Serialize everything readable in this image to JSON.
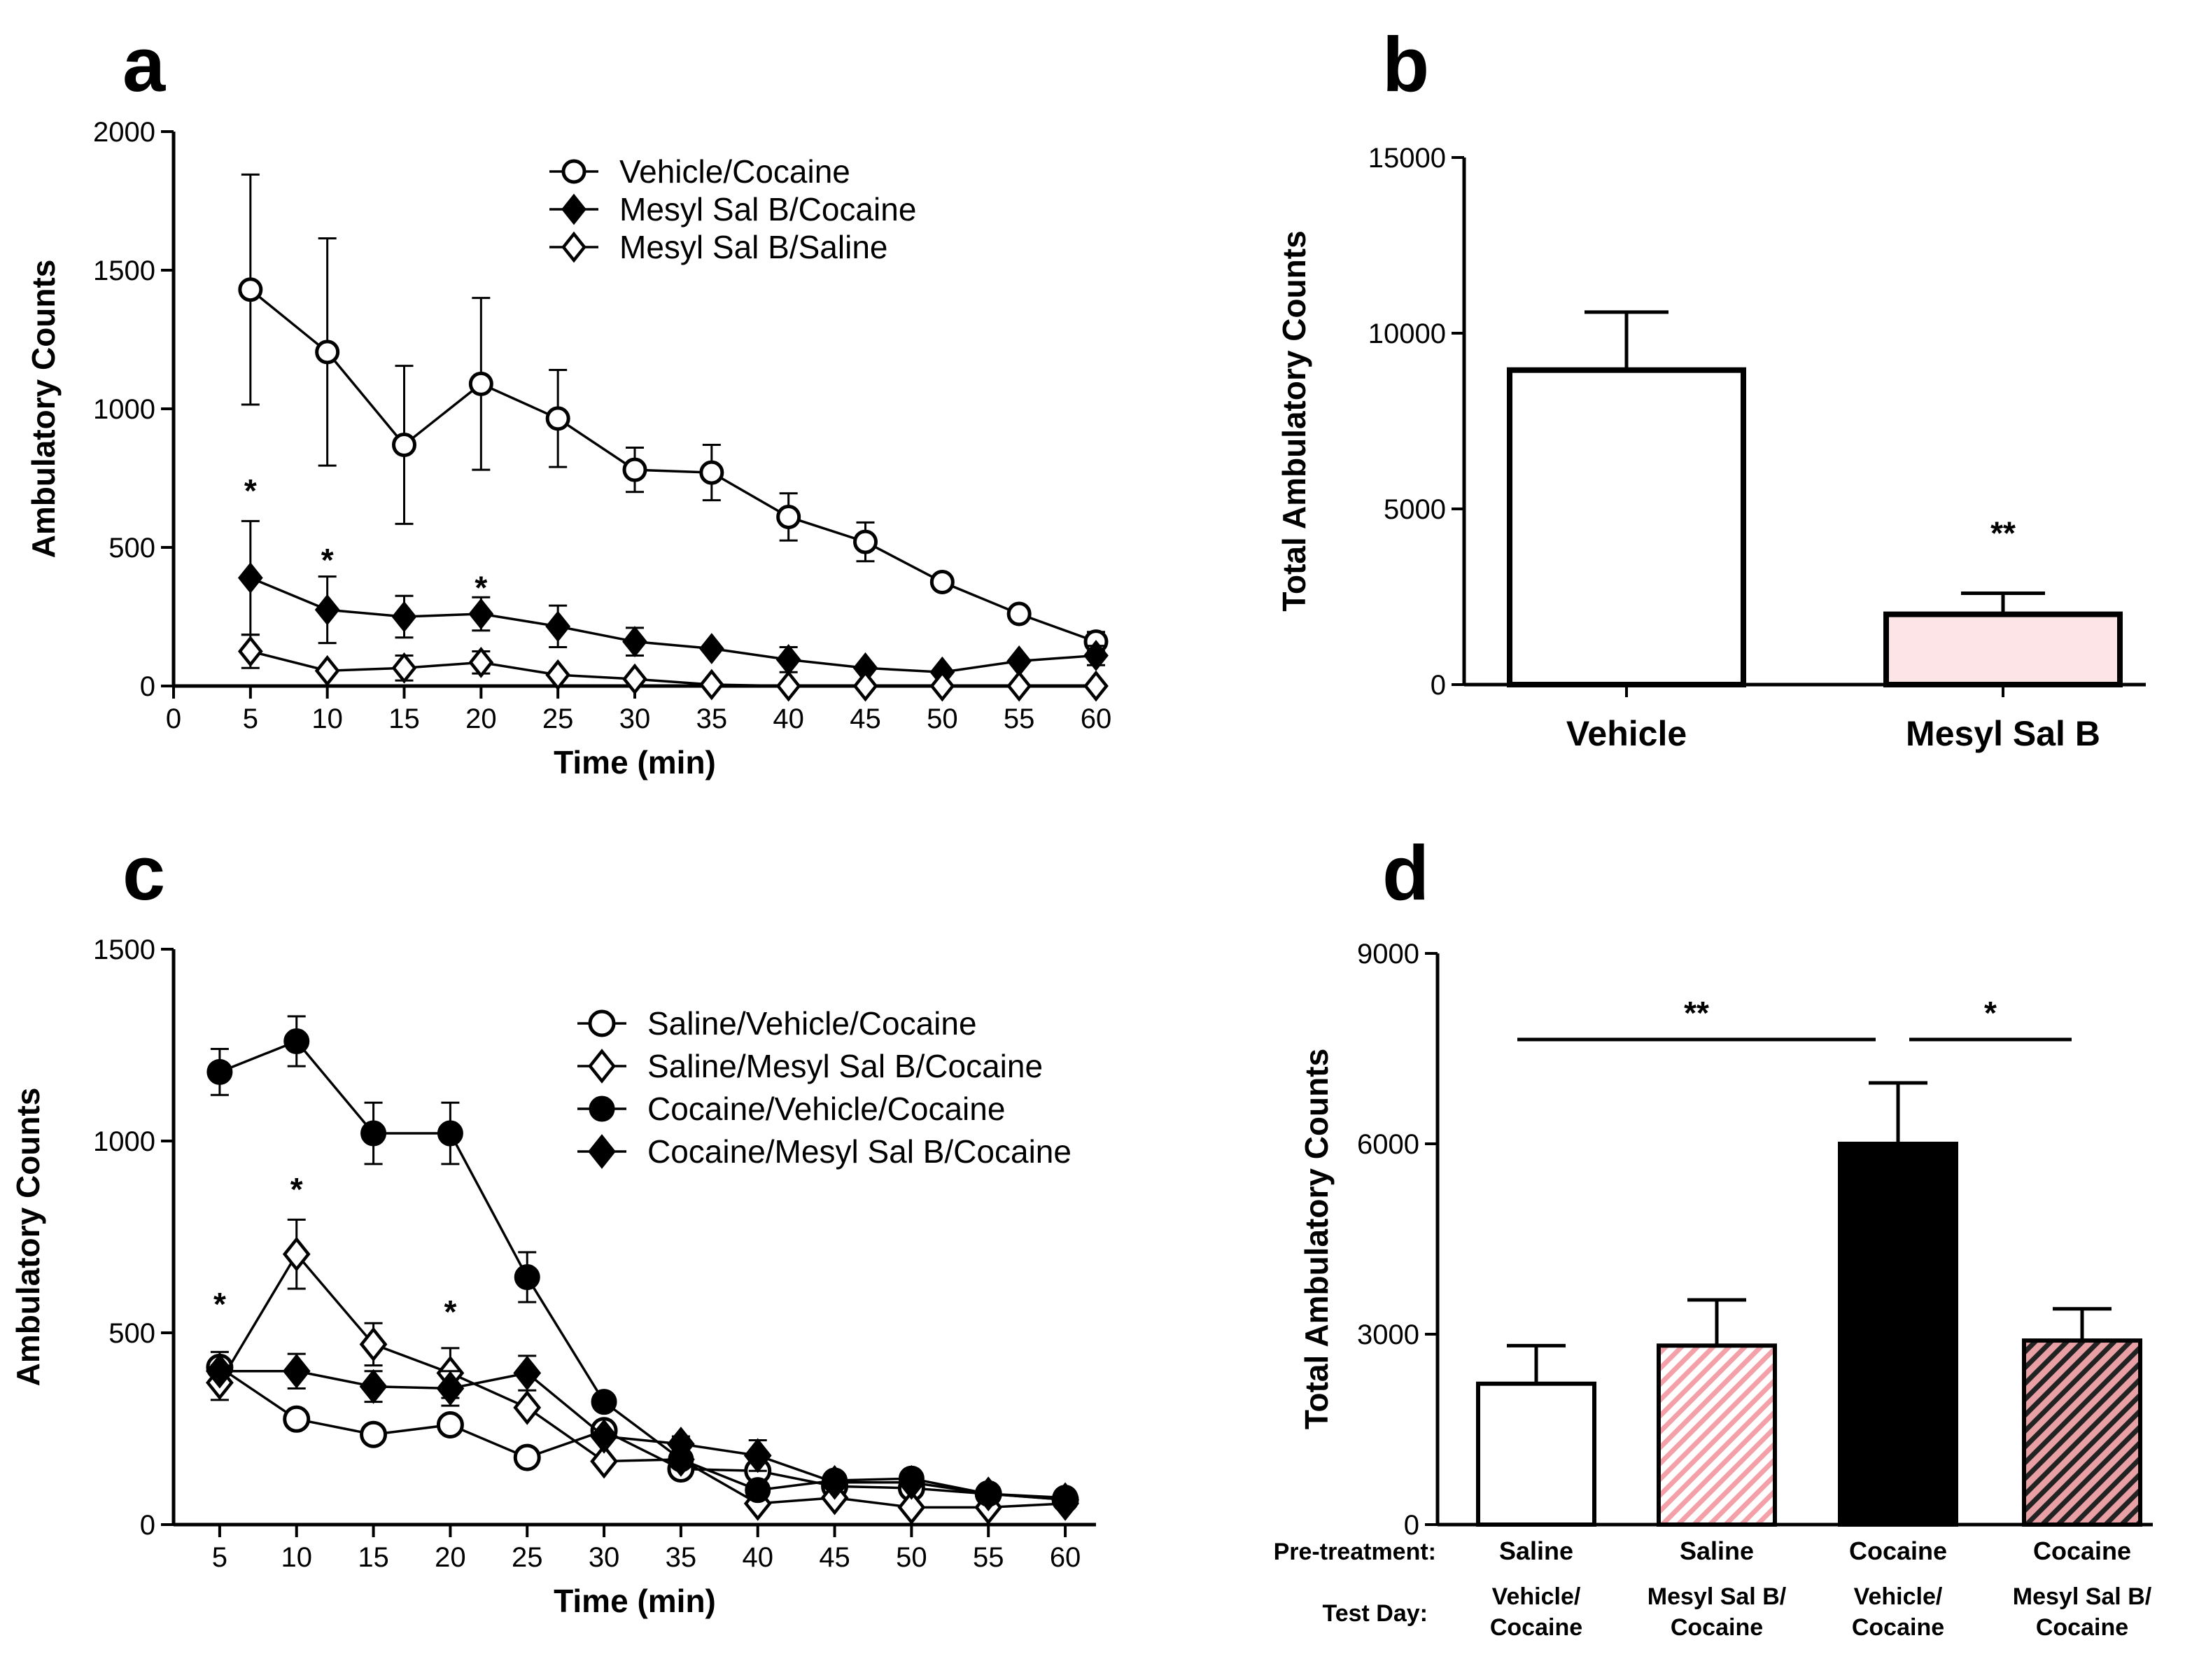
{
  "chart_data": [
    {
      "panel": "a",
      "type": "line",
      "xlabel": "Time (min)",
      "ylabel": "Ambulatory Counts",
      "xlim": [
        0,
        60
      ],
      "ylim": [
        0,
        2000
      ],
      "xticks": [
        "0",
        "5",
        "10",
        "15",
        "20",
        "25",
        "30",
        "35",
        "40",
        "45",
        "50",
        "55",
        "60"
      ],
      "yticks": [
        "0",
        "500",
        "1000",
        "1500",
        "2000"
      ],
      "x": [
        5,
        10,
        15,
        20,
        25,
        30,
        35,
        40,
        45,
        50,
        55,
        60
      ],
      "series": [
        {
          "name": "Vehicle/Cocaine",
          "marker": "open-circle",
          "values": [
            1430,
            1205,
            870,
            1090,
            965,
            780,
            770,
            610,
            520,
            375,
            260,
            160
          ],
          "errors": [
            415,
            410,
            285,
            310,
            175,
            80,
            100,
            85,
            70,
            0,
            0,
            35
          ]
        },
        {
          "name": "Mesyl Sal B/Cocaine",
          "marker": "filled-diamond",
          "values": [
            390,
            275,
            250,
            260,
            215,
            160,
            135,
            95,
            65,
            50,
            90,
            110
          ],
          "errors": [
            205,
            120,
            75,
            60,
            75,
            50,
            0,
            45,
            0,
            0,
            0,
            35
          ]
        },
        {
          "name": "Mesyl Sal B/Saline",
          "marker": "open-diamond",
          "values": [
            125,
            55,
            65,
            85,
            40,
            25,
            5,
            0,
            0,
            0,
            0,
            0
          ],
          "errors": [
            60,
            0,
            45,
            40,
            0,
            0,
            0,
            0,
            0,
            0,
            0,
            0
          ]
        }
      ],
      "annotations": [
        {
          "x": 5,
          "y": 740,
          "text": "*"
        },
        {
          "x": 10,
          "y": 490,
          "text": "*"
        },
        {
          "x": 20,
          "y": 390,
          "text": "*"
        }
      ]
    },
    {
      "panel": "b",
      "type": "bar",
      "ylabel": "Total Ambulatory Counts",
      "ylim": [
        0,
        15000
      ],
      "yticks": [
        "0",
        "5000",
        "10000",
        "15000"
      ],
      "categories": [
        "Vehicle",
        "Mesyl Sal B"
      ],
      "values": [
        8950,
        2000
      ],
      "errors": [
        1650,
        600
      ],
      "fills": [
        "#ffffff",
        "#fde4e6"
      ],
      "annotations": [
        {
          "category": "Mesyl Sal B",
          "text": "**"
        }
      ]
    },
    {
      "panel": "c",
      "type": "line",
      "xlabel": "Time (min)",
      "ylabel": "Ambulatory Counts",
      "xlim": [
        2,
        62
      ],
      "ylim": [
        0,
        1500
      ],
      "xticks": [
        "5",
        "10",
        "15",
        "20",
        "25",
        "30",
        "35",
        "40",
        "45",
        "50",
        "55",
        "60"
      ],
      "yticks": [
        "0",
        "500",
        "1000",
        "1500"
      ],
      "x": [
        5,
        10,
        15,
        20,
        25,
        30,
        35,
        40,
        45,
        50,
        55,
        60
      ],
      "series": [
        {
          "name": "Saline/Vehicle/Cocaine",
          "marker": "open-circle",
          "values": [
            410,
            275,
            235,
            260,
            175,
            245,
            145,
            140,
            100,
            95,
            80,
            65
          ],
          "errors": [
            40,
            0,
            0,
            0,
            0,
            0,
            0,
            0,
            0,
            0,
            0,
            0
          ]
        },
        {
          "name": "Saline/Mesyl Sal B/Cocaine",
          "marker": "open-diamond",
          "values": [
            370,
            705,
            470,
            395,
            305,
            165,
            170,
            55,
            70,
            45,
            45,
            55
          ],
          "errors": [
            45,
            90,
            55,
            65,
            0,
            0,
            0,
            0,
            0,
            0,
            0,
            0
          ]
        },
        {
          "name": "Cocaine/Vehicle/Cocaine",
          "marker": "filled-circle",
          "values": [
            1180,
            1260,
            1020,
            1020,
            645,
            320,
            170,
            90,
            115,
            120,
            80,
            70
          ],
          "errors": [
            60,
            65,
            80,
            80,
            65,
            0,
            0,
            0,
            0,
            0,
            0,
            0
          ]
        },
        {
          "name": "Cocaine/Mesyl Sal B/Cocaine",
          "marker": "filled-diamond",
          "values": [
            400,
            400,
            360,
            355,
            395,
            230,
            210,
            180,
            110,
            110,
            80,
            65
          ],
          "errors": [
            0,
            45,
            40,
            45,
            45,
            0,
            20,
            40,
            0,
            0,
            0,
            0
          ]
        }
      ],
      "annotations": [
        {
          "x": 5,
          "y": 600,
          "text": "*"
        },
        {
          "x": 10,
          "y": 900,
          "text": "*"
        },
        {
          "x": 20,
          "y": 580,
          "text": "*"
        }
      ]
    },
    {
      "panel": "d",
      "type": "bar",
      "ylabel": "Total Ambulatory Counts",
      "ylim": [
        0,
        9000
      ],
      "yticks": [
        "0",
        "3000",
        "6000",
        "9000"
      ],
      "row_labels": [
        "Pre-treatment:",
        "Test Day:"
      ],
      "categories": [
        {
          "pre": "Saline",
          "test1": "Vehicle/",
          "test2": "Cocaine",
          "fill": "white"
        },
        {
          "pre": "Saline",
          "test1": "Mesyl  Sal B/",
          "test2": "Cocaine",
          "fill": "pink-hatch"
        },
        {
          "pre": "Cocaine",
          "test1": "Vehicle/",
          "test2": "Cocaine",
          "fill": "black"
        },
        {
          "pre": "Cocaine",
          "test1": "Mesyl  Sal B/",
          "test2": "Cocaine",
          "fill": "red-hatch"
        }
      ],
      "values": [
        2220,
        2820,
        6000,
        2900
      ],
      "errors": [
        600,
        720,
        960,
        500
      ],
      "significance": [
        {
          "from": 0,
          "to": 2,
          "text": "**"
        },
        {
          "from": 2,
          "to": 3,
          "text": "*"
        }
      ]
    }
  ],
  "colors": {
    "pink": "#f4a0a8",
    "red_hatch": "#d9535a",
    "pink_fill": "#fde4e6"
  }
}
